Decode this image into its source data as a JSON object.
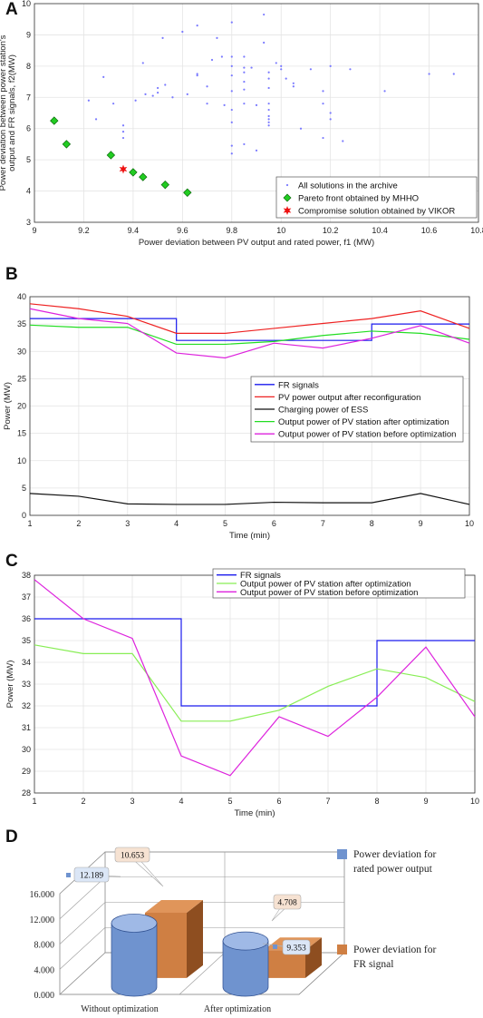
{
  "panels": {
    "a": {
      "letter": "A"
    },
    "b": {
      "letter": "B"
    },
    "c": {
      "letter": "C"
    },
    "d": {
      "letter": "D"
    }
  },
  "chart_data": [
    {
      "id": "A",
      "type": "scatter",
      "xlabel": "Power deviation between PV output and rated power, f1 (MW)",
      "ylabel": [
        "Power deviation between power station's",
        "output and FR signals, f2(MW)"
      ],
      "xlim": [
        9,
        10.8
      ],
      "ylim": [
        3,
        10
      ],
      "xticks": [
        "9",
        "9.2",
        "9.4",
        "9.6",
        "9.8",
        "10",
        "10.2",
        "10.4",
        "10.6",
        "10.8"
      ],
      "yticks": [
        "3",
        "4",
        "5",
        "6",
        "7",
        "8",
        "9",
        "10"
      ],
      "legend_position": "bottom-right",
      "series": [
        {
          "name": "All solutions in the archive",
          "color": "#7a7aff",
          "marker": "dot",
          "points": [
            [
              9.22,
              6.9
            ],
            [
              9.25,
              6.3
            ],
            [
              9.28,
              7.65
            ],
            [
              9.32,
              6.8
            ],
            [
              9.36,
              6.1
            ],
            [
              9.36,
              5.9
            ],
            [
              9.36,
              5.7
            ],
            [
              9.41,
              6.9
            ],
            [
              9.44,
              8.1
            ],
            [
              9.45,
              7.1
            ],
            [
              9.48,
              7.05
            ],
            [
              9.5,
              7.3
            ],
            [
              9.5,
              7.15
            ],
            [
              9.52,
              8.9
            ],
            [
              9.53,
              7.4
            ],
            [
              9.56,
              7.0
            ],
            [
              9.6,
              9.1
            ],
            [
              9.62,
              7.1
            ],
            [
              9.66,
              9.3
            ],
            [
              9.66,
              7.75
            ],
            [
              9.66,
              7.7
            ],
            [
              9.7,
              7.35
            ],
            [
              9.7,
              6.8
            ],
            [
              9.72,
              8.2
            ],
            [
              9.74,
              8.9
            ],
            [
              9.76,
              8.3
            ],
            [
              9.77,
              6.75
            ],
            [
              9.8,
              9.4
            ],
            [
              9.8,
              8.3
            ],
            [
              9.8,
              8.0
            ],
            [
              9.8,
              7.7
            ],
            [
              9.8,
              7.2
            ],
            [
              9.8,
              6.6
            ],
            [
              9.8,
              6.2
            ],
            [
              9.8,
              5.45
            ],
            [
              9.8,
              5.2
            ],
            [
              9.85,
              8.3
            ],
            [
              9.85,
              7.95
            ],
            [
              9.85,
              7.8
            ],
            [
              9.85,
              7.5
            ],
            [
              9.85,
              7.25
            ],
            [
              9.85,
              6.8
            ],
            [
              9.85,
              5.5
            ],
            [
              9.88,
              7.95
            ],
            [
              9.9,
              6.75
            ],
            [
              9.9,
              5.3
            ],
            [
              9.93,
              9.65
            ],
            [
              9.93,
              8.75
            ],
            [
              9.95,
              7.8
            ],
            [
              9.95,
              7.6
            ],
            [
              9.95,
              7.3
            ],
            [
              9.95,
              6.8
            ],
            [
              9.95,
              6.6
            ],
            [
              9.95,
              6.4
            ],
            [
              9.95,
              6.3
            ],
            [
              9.95,
              6.2
            ],
            [
              9.95,
              6.1
            ],
            [
              9.98,
              8.1
            ],
            [
              10.0,
              8.0
            ],
            [
              10.0,
              7.9
            ],
            [
              10.02,
              7.6
            ],
            [
              10.05,
              7.45
            ],
            [
              10.05,
              7.35
            ],
            [
              10.08,
              6.0
            ],
            [
              10.12,
              7.9
            ],
            [
              10.17,
              7.2
            ],
            [
              10.17,
              6.8
            ],
            [
              10.17,
              5.7
            ],
            [
              10.2,
              8.0
            ],
            [
              10.2,
              6.5
            ],
            [
              10.2,
              6.3
            ],
            [
              10.25,
              5.6
            ],
            [
              10.28,
              7.9
            ],
            [
              10.42,
              7.2
            ],
            [
              10.6,
              7.75
            ],
            [
              10.7,
              7.75
            ]
          ]
        },
        {
          "name": "Pareto front obtained by MHHO",
          "color": "#22cc22",
          "marker": "diamond",
          "points": [
            [
              9.08,
              6.25
            ],
            [
              9.13,
              5.5
            ],
            [
              9.31,
              5.15
            ],
            [
              9.4,
              4.6
            ],
            [
              9.44,
              4.45
            ],
            [
              9.53,
              4.2
            ],
            [
              9.62,
              3.95
            ]
          ]
        },
        {
          "name": "Compromise solution obtained by VIKOR",
          "color": "#ee1111",
          "marker": "star",
          "points": [
            [
              9.36,
              4.7
            ]
          ]
        }
      ]
    },
    {
      "id": "B",
      "type": "line",
      "xlabel": "Time (min)",
      "ylabel": "Power (MW)",
      "xlim": [
        1,
        10
      ],
      "ylim": [
        0,
        40
      ],
      "xticks": [
        "1",
        "2",
        "3",
        "4",
        "5",
        "6",
        "7",
        "8",
        "9",
        "10"
      ],
      "yticks": [
        "0",
        "5",
        "10",
        "15",
        "20",
        "25",
        "30",
        "35",
        "40"
      ],
      "legend_position": "center-right",
      "series": [
        {
          "name": "FR signals",
          "color": "#1a1aee",
          "step": true,
          "x": [
            1,
            4,
            8,
            10
          ],
          "values": [
            36,
            32,
            35,
            35
          ]
        },
        {
          "name": "PV power output after reconfiguration",
          "color": "#ee2222",
          "x": [
            1,
            2,
            3,
            4,
            5,
            6,
            7,
            8,
            9,
            10
          ],
          "values": [
            38.7,
            37.8,
            36.4,
            33.3,
            33.3,
            34.2,
            35.1,
            36.0,
            37.4,
            34.2
          ]
        },
        {
          "name": "Charging power of ESS",
          "color": "#111111",
          "x": [
            1,
            2,
            3,
            4,
            5,
            6,
            7,
            8,
            9,
            10
          ],
          "values": [
            4.0,
            3.5,
            2.1,
            2.0,
            2.0,
            2.4,
            2.3,
            2.3,
            4.0,
            2.0
          ]
        },
        {
          "name": "Output power of PV station after optimization",
          "color": "#22dd22",
          "x": [
            1,
            2,
            3,
            4,
            5,
            6,
            7,
            8,
            9,
            10
          ],
          "values": [
            34.8,
            34.4,
            34.4,
            31.3,
            31.3,
            31.8,
            32.9,
            33.7,
            33.3,
            32.2
          ]
        },
        {
          "name": "Output power of PV station before optimization",
          "color": "#dd22dd",
          "x": [
            1,
            2,
            3,
            4,
            5,
            6,
            7,
            8,
            9,
            10
          ],
          "values": [
            37.8,
            36.0,
            35.1,
            29.7,
            28.8,
            31.5,
            30.6,
            32.4,
            34.7,
            31.5
          ]
        }
      ]
    },
    {
      "id": "C",
      "type": "line",
      "xlabel": "Time (min)",
      "ylabel": "Power (MW)",
      "xlim": [
        1,
        10
      ],
      "ylim": [
        28,
        38
      ],
      "xticks": [
        "1",
        "2",
        "3",
        "4",
        "5",
        "6",
        "7",
        "8",
        "9",
        "10"
      ],
      "yticks": [
        "28",
        "29",
        "30",
        "31",
        "32",
        "33",
        "34",
        "35",
        "36",
        "37",
        "38"
      ],
      "legend_position": "top-right",
      "series": [
        {
          "name": "FR signals",
          "color": "#1a1aee",
          "step": true,
          "x": [
            1,
            4,
            8,
            10
          ],
          "values": [
            36,
            32,
            35,
            35
          ]
        },
        {
          "name": "Output power of PV station after optimization",
          "color": "#88ee55",
          "x": [
            1,
            2,
            3,
            4,
            5,
            6,
            7,
            8,
            9,
            10
          ],
          "values": [
            34.8,
            34.4,
            34.4,
            31.3,
            31.3,
            31.8,
            32.9,
            33.7,
            33.3,
            32.2
          ]
        },
        {
          "name": "Output power of PV station before optimization",
          "color": "#dd22dd",
          "x": [
            1,
            2,
            3,
            4,
            5,
            6,
            7,
            8,
            9,
            10
          ],
          "values": [
            37.8,
            36.0,
            35.1,
            29.7,
            28.8,
            31.5,
            30.6,
            32.4,
            34.7,
            31.5
          ]
        }
      ]
    },
    {
      "id": "D",
      "type": "bar",
      "categories": [
        "Without optimization",
        "After optimization"
      ],
      "yticks": [
        "0.000",
        "4.000",
        "8.000",
        "12.000",
        "16.000"
      ],
      "ylim": [
        0,
        16
      ],
      "legend_position": "right",
      "series": [
        {
          "name": "Power deviation for rated power output",
          "color": "#6f93cf",
          "shape": "cylinder",
          "values": [
            12.189,
            9.353
          ],
          "labels": [
            "12.189",
            "9.353"
          ]
        },
        {
          "name": "Power deviation for FR signal",
          "color": "#cf7f43",
          "shape": "box",
          "values": [
            10.653,
            4.708
          ],
          "labels": [
            "10.653",
            "4.708"
          ]
        }
      ]
    }
  ]
}
